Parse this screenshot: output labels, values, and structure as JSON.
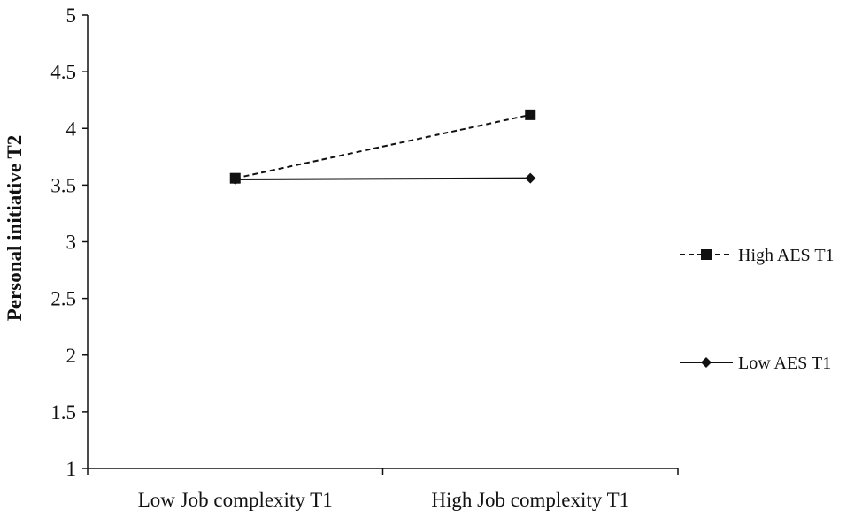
{
  "chart_data": {
    "type": "line",
    "title": "",
    "xlabel": "",
    "ylabel": "Personal initiative  T2",
    "categories": [
      "Low Job complexity T1",
      "High Job complexity T1"
    ],
    "ylim": [
      1,
      5
    ],
    "yticks": [
      "1",
      "1.5",
      "2",
      "2.5",
      "3",
      "3.5",
      "4",
      "4.5",
      "5"
    ],
    "grid": false,
    "legend_position": "right",
    "series": [
      {
        "name": "High AES T1",
        "values": [
          3.56,
          4.12
        ],
        "line_style": "dashed",
        "marker": "square",
        "color": "#111111"
      },
      {
        "name": "Low AES T1",
        "values": [
          3.55,
          3.56
        ],
        "line_style": "solid",
        "marker": "diamond",
        "color": "#111111"
      }
    ]
  }
}
